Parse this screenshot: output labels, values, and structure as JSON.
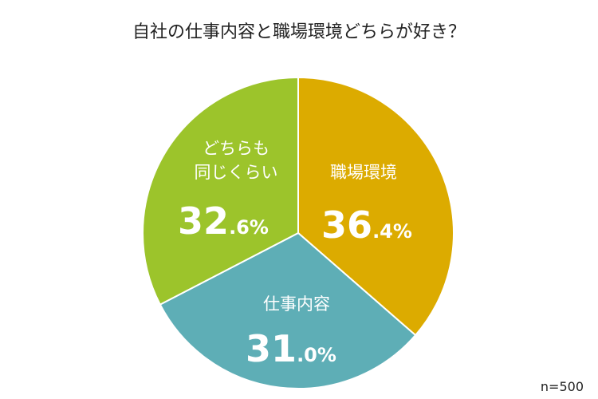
{
  "chart_data": {
    "type": "pie",
    "title": "自社の仕事内容と職場環境どちらが好き？",
    "categories": [
      "職場環境",
      "仕事内容",
      "どちらも\n同じくらい"
    ],
    "values": [
      36.4,
      31.0,
      32.6
    ],
    "value_labels": [
      "36.4%",
      "31.0%",
      "32.6%"
    ],
    "colors": [
      "#dcab00",
      "#5eaeb6",
      "#9cc42b"
    ],
    "note": "n=500"
  }
}
